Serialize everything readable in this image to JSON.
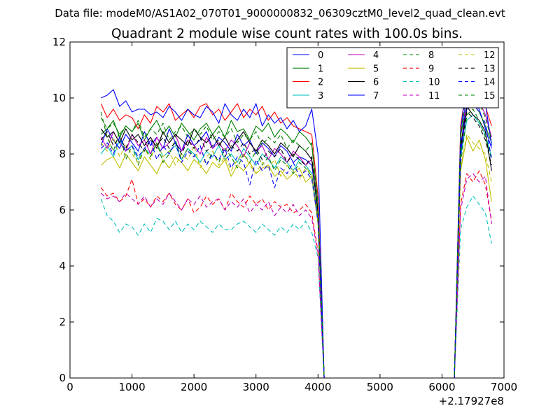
{
  "chart_data": {
    "type": "line",
    "suptitle": "Data file: modeM0/AS1A02_070T01_9000000832_06309cztM0_level2_quad_clean.evt",
    "title": "Quadrant 2 module wise count rates with 100.0s bins.",
    "xlabel": "",
    "ylabel": "",
    "x_offset_label": "+2.17927e8",
    "xlim": [
      0,
      7000
    ],
    "ylim": [
      0,
      12
    ],
    "xticks": [
      0,
      1000,
      2000,
      3000,
      4000,
      5000,
      6000,
      7000
    ],
    "yticks": [
      0,
      2,
      4,
      6,
      8,
      10,
      12
    ],
    "grid": false,
    "legend_position": "upper-right",
    "legend_columns": 4,
    "x": [
      500,
      600,
      700,
      800,
      900,
      1000,
      1100,
      1200,
      1300,
      1400,
      1500,
      1600,
      1700,
      1800,
      1900,
      2000,
      2100,
      2200,
      2300,
      2400,
      2500,
      2600,
      2700,
      2800,
      2900,
      3000,
      3100,
      3200,
      3300,
      3400,
      3500,
      3600,
      3700,
      3800,
      3900,
      4000,
      4100,
      4200,
      4300,
      4400,
      4500,
      4600,
      4700,
      4800,
      4900,
      5000,
      5100,
      5200,
      5300,
      5400,
      5500,
      5600,
      5700,
      5800,
      5900,
      6000,
      6100,
      6200,
      6300,
      6400,
      6500,
      6600,
      6700,
      6800
    ],
    "series": [
      {
        "name": "0",
        "color": "#0000ff",
        "dash": "solid",
        "values": [
          8.3,
          8.9,
          8.5,
          8.2,
          8.7,
          8.4,
          8.1,
          8.8,
          8.3,
          8.6,
          8.2,
          8.9,
          8.4,
          8.1,
          8.7,
          8.3,
          8.5,
          8.8,
          8.2,
          8.6,
          8.4,
          8.1,
          8.7,
          8.3,
          8.5,
          8.0,
          8.4,
          8.2,
          7.9,
          8.3,
          8.1,
          7.7,
          7.9,
          7.8,
          7.6,
          6.0,
          0.0,
          0.0,
          0.0,
          0.0,
          0.0,
          0.0,
          0.0,
          0.0,
          0.0,
          0.0,
          0.0,
          0.0,
          0.0,
          0.0,
          0.0,
          0.0,
          0.0,
          0.0,
          0.0,
          0.0,
          0.0,
          0.0,
          8.0,
          9.6,
          9.9,
          9.6,
          8.9,
          8.2
        ]
      },
      {
        "name": "1",
        "color": "#008000",
        "dash": "solid",
        "values": [
          8.7,
          8.9,
          9.2,
          8.6,
          9.0,
          8.8,
          9.1,
          8.5,
          8.9,
          9.2,
          8.7,
          9.0,
          8.6,
          9.1,
          8.8,
          8.5,
          8.9,
          9.1,
          8.7,
          9.0,
          8.6,
          9.2,
          8.8,
          8.9,
          8.5,
          9.0,
          8.8,
          9.1,
          8.6,
          8.9,
          8.7,
          8.4,
          8.8,
          8.6,
          8.3,
          6.2,
          0.0,
          0.0,
          0.0,
          0.0,
          0.0,
          0.0,
          0.0,
          0.0,
          0.0,
          0.0,
          0.0,
          0.0,
          0.0,
          0.0,
          0.0,
          0.0,
          0.0,
          0.0,
          0.0,
          0.0,
          0.0,
          0.0,
          8.6,
          10.0,
          9.8,
          9.5,
          9.0,
          8.4
        ]
      },
      {
        "name": "2",
        "color": "#ff0000",
        "dash": "solid",
        "values": [
          9.8,
          9.3,
          9.6,
          9.2,
          9.4,
          9.3,
          8.9,
          9.4,
          9.1,
          9.7,
          9.5,
          9.8,
          9.2,
          9.4,
          9.6,
          9.3,
          9.7,
          9.8,
          9.4,
          9.6,
          9.2,
          9.5,
          9.8,
          9.3,
          9.6,
          9.4,
          9.7,
          9.2,
          9.5,
          9.1,
          9.3,
          9.0,
          8.9,
          8.8,
          8.7,
          6.5,
          0.0,
          0.0,
          0.0,
          0.0,
          0.0,
          0.0,
          0.0,
          0.0,
          0.0,
          0.0,
          0.0,
          0.0,
          0.0,
          0.0,
          0.0,
          0.0,
          0.0,
          0.0,
          0.0,
          0.0,
          0.0,
          0.0,
          9.0,
          10.5,
          10.3,
          10.1,
          9.7,
          9.0
        ]
      },
      {
        "name": "3",
        "color": "#00bfbf",
        "dash": "solid",
        "values": [
          8.0,
          8.3,
          7.9,
          8.5,
          8.1,
          8.3,
          7.8,
          8.2,
          8.0,
          8.4,
          7.9,
          8.1,
          8.3,
          7.8,
          8.2,
          8.0,
          7.7,
          8.1,
          7.9,
          8.3,
          7.8,
          8.0,
          7.7,
          8.2,
          7.9,
          7.6,
          8.0,
          7.8,
          7.5,
          7.9,
          7.7,
          7.4,
          7.8,
          7.6,
          7.3,
          5.8,
          0.0,
          0.0,
          0.0,
          0.0,
          0.0,
          0.0,
          0.0,
          0.0,
          0.0,
          0.0,
          0.0,
          0.0,
          0.0,
          0.0,
          0.0,
          0.0,
          0.0,
          0.0,
          0.0,
          0.0,
          0.0,
          0.0,
          7.9,
          9.2,
          9.4,
          9.1,
          8.7,
          7.9
        ]
      },
      {
        "name": "4",
        "color": "#bf00bf",
        "dash": "solid",
        "values": [
          8.6,
          8.2,
          8.8,
          8.4,
          8.1,
          8.7,
          8.3,
          8.5,
          8.0,
          8.6,
          8.2,
          8.4,
          8.7,
          8.1,
          8.5,
          8.3,
          8.0,
          8.6,
          8.2,
          8.4,
          8.1,
          8.5,
          8.3,
          7.9,
          8.4,
          8.1,
          8.3,
          7.8,
          8.2,
          8.0,
          7.7,
          8.1,
          7.9,
          7.6,
          7.8,
          5.9,
          0.0,
          0.0,
          0.0,
          0.0,
          0.0,
          0.0,
          0.0,
          0.0,
          0.0,
          0.0,
          0.0,
          0.0,
          0.0,
          0.0,
          0.0,
          0.0,
          0.0,
          0.0,
          0.0,
          0.0,
          0.0,
          0.0,
          8.1,
          10.2,
          9.7,
          9.9,
          9.4,
          8.6
        ]
      },
      {
        "name": "5",
        "color": "#bfbf00",
        "dash": "solid",
        "values": [
          7.6,
          7.8,
          7.9,
          7.5,
          8.0,
          7.7,
          7.4,
          7.9,
          7.6,
          7.3,
          7.8,
          7.5,
          7.9,
          7.7,
          7.4,
          7.8,
          7.6,
          7.3,
          7.7,
          7.5,
          7.8,
          7.2,
          7.6,
          7.4,
          7.7,
          7.3,
          7.5,
          7.6,
          7.2,
          7.4,
          7.1,
          7.3,
          7.5,
          7.0,
          7.2,
          5.5,
          0.0,
          0.0,
          0.0,
          0.0,
          0.0,
          0.0,
          0.0,
          0.0,
          0.0,
          0.0,
          0.0,
          0.0,
          0.0,
          0.0,
          0.0,
          0.0,
          0.0,
          0.0,
          0.0,
          0.0,
          0.0,
          0.0,
          7.4,
          8.6,
          8.1,
          8.5,
          7.8,
          6.3
        ]
      },
      {
        "name": "6",
        "color": "#000000",
        "dash": "solid",
        "values": [
          8.9,
          8.6,
          8.8,
          8.4,
          8.9,
          8.5,
          8.7,
          8.3,
          8.6,
          8.2,
          8.8,
          8.4,
          8.7,
          8.5,
          8.3,
          8.9,
          8.6,
          8.4,
          8.7,
          8.3,
          8.6,
          8.2,
          8.5,
          8.8,
          8.4,
          8.1,
          8.5,
          8.3,
          8.0,
          8.4,
          8.2,
          7.9,
          8.3,
          8.1,
          7.8,
          5.9,
          0.0,
          0.0,
          0.0,
          0.0,
          0.0,
          0.0,
          0.0,
          0.0,
          0.0,
          0.0,
          0.0,
          0.0,
          0.0,
          0.0,
          0.0,
          0.0,
          0.0,
          0.0,
          0.0,
          0.0,
          0.0,
          0.0,
          8.3,
          9.7,
          9.4,
          9.2,
          8.8,
          7.4
        ]
      },
      {
        "name": "7",
        "color": "#0000ff",
        "dash": "solid",
        "values": [
          10.0,
          10.1,
          10.3,
          9.7,
          9.9,
          9.5,
          9.6,
          9.6,
          9.4,
          9.5,
          9.3,
          9.7,
          9.5,
          9.2,
          9.6,
          9.4,
          9.3,
          9.7,
          9.5,
          9.1,
          9.8,
          9.4,
          9.2,
          9.6,
          9.3,
          9.8,
          9.0,
          9.4,
          9.1,
          9.3,
          8.9,
          9.2,
          8.8,
          9.0,
          9.6,
          8.0,
          0.0,
          0.0,
          0.0,
          0.0,
          0.0,
          0.0,
          0.0,
          0.0,
          0.0,
          0.0,
          0.0,
          0.0,
          0.0,
          0.0,
          0.0,
          0.0,
          0.0,
          0.0,
          0.0,
          0.0,
          0.0,
          0.0,
          8.8,
          10.6,
          10.5,
          10.2,
          9.8,
          8.3
        ]
      },
      {
        "name": "8",
        "color": "#008000",
        "dash": "dashed",
        "values": [
          9.5,
          8.6,
          8.1,
          8.8,
          7.8,
          8.3,
          7.6,
          8.2,
          7.9,
          8.4,
          7.7,
          8.0,
          8.5,
          7.8,
          8.2,
          7.9,
          8.3,
          7.6,
          8.1,
          7.7,
          8.2,
          7.9,
          7.5,
          8.0,
          7.7,
          8.1,
          7.6,
          7.9,
          7.4,
          7.8,
          7.6,
          7.3,
          7.7,
          7.5,
          7.2,
          5.6,
          0.0,
          0.0,
          0.0,
          0.0,
          0.0,
          0.0,
          0.0,
          0.0,
          0.0,
          0.0,
          0.0,
          0.0,
          0.0,
          0.0,
          0.0,
          0.0,
          0.0,
          0.0,
          0.0,
          0.0,
          0.0,
          0.0,
          7.6,
          9.4,
          9.6,
          9.2,
          8.6,
          7.8
        ]
      },
      {
        "name": "9",
        "color": "#ff0000",
        "dash": "dashed",
        "values": [
          6.8,
          6.5,
          6.6,
          6.3,
          6.5,
          7.1,
          6.2,
          6.4,
          6.1,
          6.5,
          6.3,
          6.6,
          6.2,
          6.0,
          6.4,
          5.9,
          6.1,
          6.5,
          6.2,
          6.4,
          6.0,
          6.6,
          6.3,
          6.1,
          6.5,
          6.2,
          6.4,
          6.0,
          6.3,
          6.1,
          6.2,
          5.9,
          6.0,
          6.2,
          5.9,
          4.5,
          0.0,
          0.0,
          0.0,
          0.0,
          0.0,
          0.0,
          0.0,
          0.0,
          0.0,
          0.0,
          0.0,
          0.0,
          0.0,
          0.0,
          0.0,
          0.0,
          0.0,
          0.0,
          0.0,
          0.0,
          0.0,
          0.0,
          6.2,
          7.3,
          7.0,
          7.4,
          6.9,
          5.6
        ]
      },
      {
        "name": "10",
        "color": "#00bfbf",
        "dash": "dashed",
        "values": [
          6.4,
          5.8,
          5.6,
          5.2,
          5.5,
          5.4,
          5.1,
          5.5,
          5.2,
          5.7,
          5.6,
          5.3,
          5.6,
          5.2,
          5.5,
          5.3,
          5.6,
          5.4,
          5.2,
          5.5,
          5.3,
          5.3,
          5.5,
          5.6,
          5.4,
          5.2,
          5.5,
          5.3,
          5.1,
          5.4,
          5.2,
          5.5,
          5.3,
          5.6,
          5.2,
          4.3,
          0.0,
          0.0,
          0.0,
          0.0,
          0.0,
          0.0,
          0.0,
          0.0,
          0.0,
          0.0,
          0.0,
          0.0,
          0.0,
          0.0,
          0.0,
          0.0,
          0.0,
          0.0,
          0.0,
          0.0,
          0.0,
          0.0,
          5.3,
          6.1,
          6.5,
          6.2,
          5.9,
          4.8
        ]
      },
      {
        "name": "11",
        "color": "#bf00bf",
        "dash": "dashed",
        "values": [
          6.6,
          6.4,
          6.5,
          6.3,
          6.6,
          6.4,
          6.2,
          6.5,
          6.1,
          6.4,
          6.2,
          6.6,
          6.3,
          6.0,
          6.4,
          6.2,
          6.5,
          6.1,
          6.3,
          6.4,
          6.0,
          6.3,
          6.1,
          6.4,
          5.9,
          6.2,
          6.0,
          6.3,
          5.8,
          6.1,
          5.9,
          6.2,
          5.8,
          6.0,
          5.7,
          4.4,
          0.0,
          0.0,
          0.0,
          0.0,
          0.0,
          0.0,
          0.0,
          0.0,
          0.0,
          0.0,
          0.0,
          0.0,
          0.0,
          0.0,
          0.0,
          0.0,
          0.0,
          0.0,
          0.0,
          0.0,
          0.0,
          0.0,
          6.0,
          7.1,
          7.3,
          7.0,
          7.2,
          5.5
        ]
      },
      {
        "name": "12",
        "color": "#bfbf00",
        "dash": "dashed",
        "values": [
          8.4,
          8.1,
          8.6,
          7.9,
          8.3,
          8.0,
          7.7,
          8.2,
          7.8,
          8.4,
          7.9,
          8.1,
          7.6,
          8.0,
          7.8,
          8.3,
          7.5,
          7.9,
          8.1,
          7.6,
          7.9,
          7.4,
          7.8,
          8.0,
          7.6,
          7.3,
          7.7,
          7.5,
          7.8,
          7.2,
          7.6,
          7.4,
          7.1,
          7.5,
          7.3,
          5.7,
          0.0,
          0.0,
          0.0,
          0.0,
          0.0,
          0.0,
          0.0,
          0.0,
          0.0,
          0.0,
          0.0,
          0.0,
          0.0,
          0.0,
          0.0,
          0.0,
          0.0,
          0.0,
          0.0,
          0.0,
          0.0,
          0.0,
          7.5,
          8.7,
          8.4,
          8.2,
          8.0,
          7.0
        ]
      },
      {
        "name": "13",
        "color": "#000000",
        "dash": "dashed",
        "values": [
          8.5,
          8.8,
          8.3,
          8.6,
          8.2,
          8.7,
          8.4,
          8.1,
          8.5,
          8.3,
          8.6,
          8.2,
          8.4,
          8.0,
          8.5,
          8.2,
          8.6,
          8.1,
          8.3,
          8.5,
          7.9,
          8.3,
          8.1,
          8.4,
          8.0,
          8.2,
          7.8,
          8.1,
          7.9,
          8.2,
          7.7,
          8.0,
          7.8,
          7.6,
          7.9,
          6.0,
          0.0,
          0.0,
          0.0,
          0.0,
          0.0,
          0.0,
          0.0,
          0.0,
          0.0,
          0.0,
          0.0,
          0.0,
          0.0,
          0.0,
          0.0,
          0.0,
          0.0,
          0.0,
          0.0,
          0.0,
          0.0,
          0.0,
          8.1,
          9.5,
          9.3,
          9.0,
          8.5,
          7.6
        ]
      },
      {
        "name": "14",
        "color": "#0000ff",
        "dash": "dashed",
        "values": [
          8.2,
          8.4,
          8.0,
          8.6,
          8.1,
          8.3,
          7.9,
          8.2,
          8.5,
          7.8,
          8.3,
          8.0,
          8.4,
          7.7,
          8.1,
          7.9,
          8.3,
          7.6,
          8.0,
          7.8,
          8.2,
          7.5,
          7.9,
          7.7,
          6.9,
          7.8,
          7.4,
          7.6,
          6.8,
          7.5,
          7.3,
          7.7,
          7.2,
          7.4,
          7.1,
          5.6,
          0.0,
          0.0,
          0.0,
          0.0,
          0.0,
          0.0,
          0.0,
          0.0,
          0.0,
          0.0,
          0.0,
          0.0,
          0.0,
          0.0,
          0.0,
          0.0,
          0.0,
          0.0,
          0.0,
          0.0,
          0.0,
          0.0,
          7.9,
          10.4,
          9.8,
          9.5,
          9.1,
          7.8
        ]
      },
      {
        "name": "15",
        "color": "#008000",
        "dash": "dashed",
        "values": [
          9.3,
          8.9,
          9.1,
          8.7,
          9.0,
          8.8,
          9.2,
          8.6,
          8.9,
          8.7,
          9.1,
          8.5,
          8.8,
          9.0,
          8.6,
          8.9,
          8.7,
          9.0,
          8.5,
          8.8,
          8.6,
          8.9,
          8.4,
          8.7,
          8.5,
          8.8,
          8.3,
          8.6,
          8.4,
          8.7,
          8.2,
          8.5,
          8.3,
          8.1,
          8.4,
          6.3,
          0.0,
          0.0,
          0.0,
          0.0,
          0.0,
          0.0,
          0.0,
          0.0,
          0.0,
          0.0,
          0.0,
          0.0,
          0.0,
          0.0,
          0.0,
          0.0,
          0.0,
          0.0,
          0.0,
          0.0,
          0.0,
          0.0,
          8.7,
          10.3,
          10.1,
          9.8,
          9.3,
          8.5
        ]
      }
    ]
  }
}
